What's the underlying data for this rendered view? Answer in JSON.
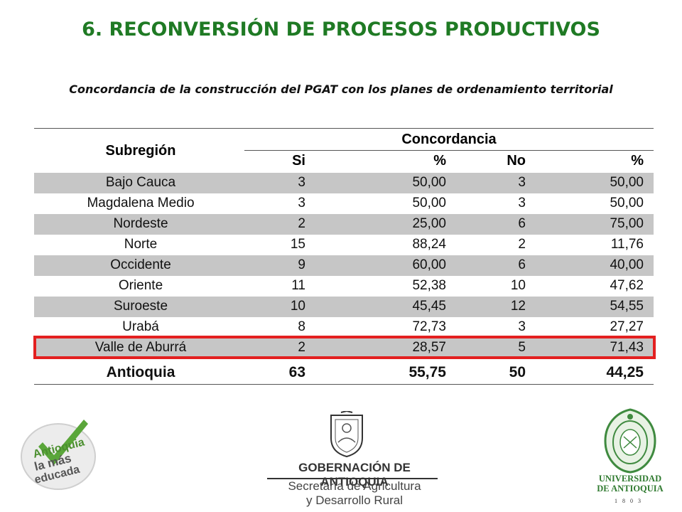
{
  "title": "6. RECONVERSIÓN DE PROCESOS PRODUCTIVOS",
  "subtitle": "Concordancia de la construcción del PGAT con los planes de ordenamiento territorial",
  "table": {
    "header_subregion": "Subregión",
    "header_group": "Concordancia",
    "col_si": "Si",
    "col_pct1": "%",
    "col_no": "No",
    "col_pct2": "%",
    "rows": [
      {
        "name": "Bajo Cauca",
        "si": "3",
        "pct_si": "50,00",
        "no": "3",
        "pct_no": "50,00"
      },
      {
        "name": "Magdalena Medio",
        "si": "3",
        "pct_si": "50,00",
        "no": "3",
        "pct_no": "50,00"
      },
      {
        "name": "Nordeste",
        "si": "2",
        "pct_si": "25,00",
        "no": "6",
        "pct_no": "75,00"
      },
      {
        "name": "Norte",
        "si": "15",
        "pct_si": "88,24",
        "no": "2",
        "pct_no": "11,76"
      },
      {
        "name": "Occidente",
        "si": "9",
        "pct_si": "60,00",
        "no": "6",
        "pct_no": "40,00"
      },
      {
        "name": "Oriente",
        "si": "11",
        "pct_si": "52,38",
        "no": "10",
        "pct_no": "47,62"
      },
      {
        "name": "Suroeste",
        "si": "10",
        "pct_si": "45,45",
        "no": "12",
        "pct_no": "54,55"
      },
      {
        "name": "Urabá",
        "si": "8",
        "pct_si": "72,73",
        "no": "3",
        "pct_no": "27,27"
      },
      {
        "name": "Valle de Aburrá",
        "si": "2",
        "pct_si": "28,57",
        "no": "5",
        "pct_no": "71,43"
      }
    ],
    "total": {
      "name": "Antioquia",
      "si": "63",
      "pct_si": "55,75",
      "no": "50",
      "pct_no": "44,25"
    },
    "highlighted_row": "Valle de Aburrá"
  },
  "logos": {
    "left_text": [
      "Antioquia",
      "la más",
      "educada"
    ],
    "center_title": "GOBERNACIÓN DE ANTIOQUIA",
    "center_sub1": "Secretaría de Agricultura",
    "center_sub2": "y Desarrollo Rural",
    "right_name1": "UNIVERSIDAD",
    "right_name2": "DE ANTIOQUIA",
    "right_year": "1803"
  },
  "colors": {
    "title": "#1f7a24",
    "shade": "#c6c6c6",
    "highlight": "#e32020",
    "logo_green": "#5aa63a"
  }
}
